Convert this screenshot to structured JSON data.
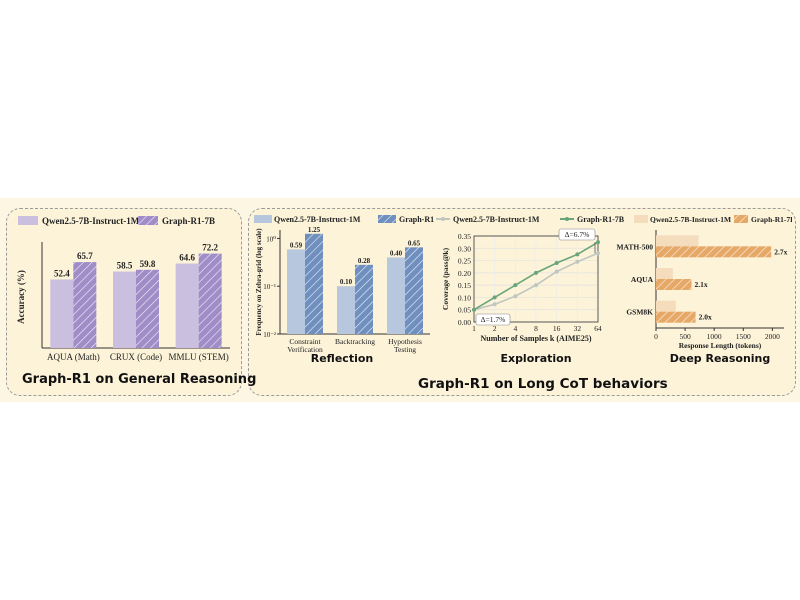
{
  "captions": {
    "left": "Graph-R1 on General Reasoning",
    "right": "Graph-R1 on Long CoT behaviors"
  },
  "colors": {
    "purple_light": "#cbbfe0",
    "purple_dark": "#a08dc8",
    "blue_light": "#b7c7de",
    "blue_dark": "#6f8fbf",
    "green_light": "#bfc6bf",
    "green_dark": "#6aa57a",
    "orange_light": "#f4dcbd",
    "orange_dark": "#e6a867"
  },
  "chart_data": [
    {
      "id": "general",
      "type": "bar",
      "categories": [
        "AQUA (Math)",
        "CRUX (Code)",
        "MMLU (STEM)"
      ],
      "series": [
        {
          "name": "Qwen2.5-7B-Instruct-1M",
          "values": [
            52.4,
            58.5,
            64.6
          ]
        },
        {
          "name": "Graph-R1-7B",
          "values": [
            65.7,
            59.8,
            72.2
          ]
        }
      ],
      "ylabel": "Accuracy (%)",
      "ylim": [
        0,
        78
      ],
      "grid": false,
      "legend": "top"
    },
    {
      "id": "reflection",
      "type": "bar",
      "title": "Reflection",
      "categories": [
        "Constraint Verification",
        "Backtracking",
        "Hypothesis Testing"
      ],
      "series": [
        {
          "name": "Qwen2.5-7B-Instruct-1M",
          "values": [
            0.59,
            0.1,
            0.4
          ]
        },
        {
          "name": "Graph-R1-7B",
          "values": [
            1.25,
            0.28,
            0.65
          ]
        }
      ],
      "ylabel": "Frequency on Zebra-grid (log scale)",
      "yscale": "log",
      "ylim": [
        0.01,
        1.5
      ],
      "yticks": [
        "10⁰",
        "10⁻¹",
        "10⁻²"
      ],
      "legend": "top"
    },
    {
      "id": "exploration",
      "type": "line",
      "title": "Exploration",
      "x": [
        1,
        2,
        4,
        8,
        16,
        32,
        64
      ],
      "series": [
        {
          "name": "Qwen2.5-7B-Instruct-1M",
          "values": [
            0.05,
            0.072,
            0.105,
            0.15,
            0.205,
            0.245,
            0.28
          ]
        },
        {
          "name": "Graph-R1-7B",
          "values": [
            0.05,
            0.1,
            0.15,
            0.2,
            0.24,
            0.275,
            0.325
          ]
        }
      ],
      "xlabel": "Number of Samples k (AIME25)",
      "ylabel": "Coverage (pass@k)",
      "xscale": "log2",
      "ylim": [
        0.0,
        0.35
      ],
      "yticks": [
        0.0,
        0.05,
        0.1,
        0.15,
        0.2,
        0.25,
        0.3,
        0.35
      ],
      "annotations": [
        "Δ=6.7%",
        "Δ=1.7%"
      ],
      "grid": true,
      "legend": "top"
    },
    {
      "id": "deep_reasoning",
      "type": "bar",
      "orientation": "horizontal",
      "title": "Deep Reasoning",
      "categories": [
        "MATH-500",
        "AQUA",
        "GSM8K"
      ],
      "series": [
        {
          "name": "Qwen2.5-7B-Instruct-1M",
          "values": [
            730,
            290,
            340
          ]
        },
        {
          "name": "Graph-R1-7B",
          "values": [
            1980,
            610,
            680
          ]
        }
      ],
      "data_labels": [
        "2.7x",
        "2.1x",
        "2.0x"
      ],
      "xlabel": "Response Length (tokens)",
      "xlim": [
        0,
        2200
      ],
      "xticks": [
        0,
        500,
        1000,
        1500,
        2000
      ],
      "legend": "top"
    }
  ]
}
